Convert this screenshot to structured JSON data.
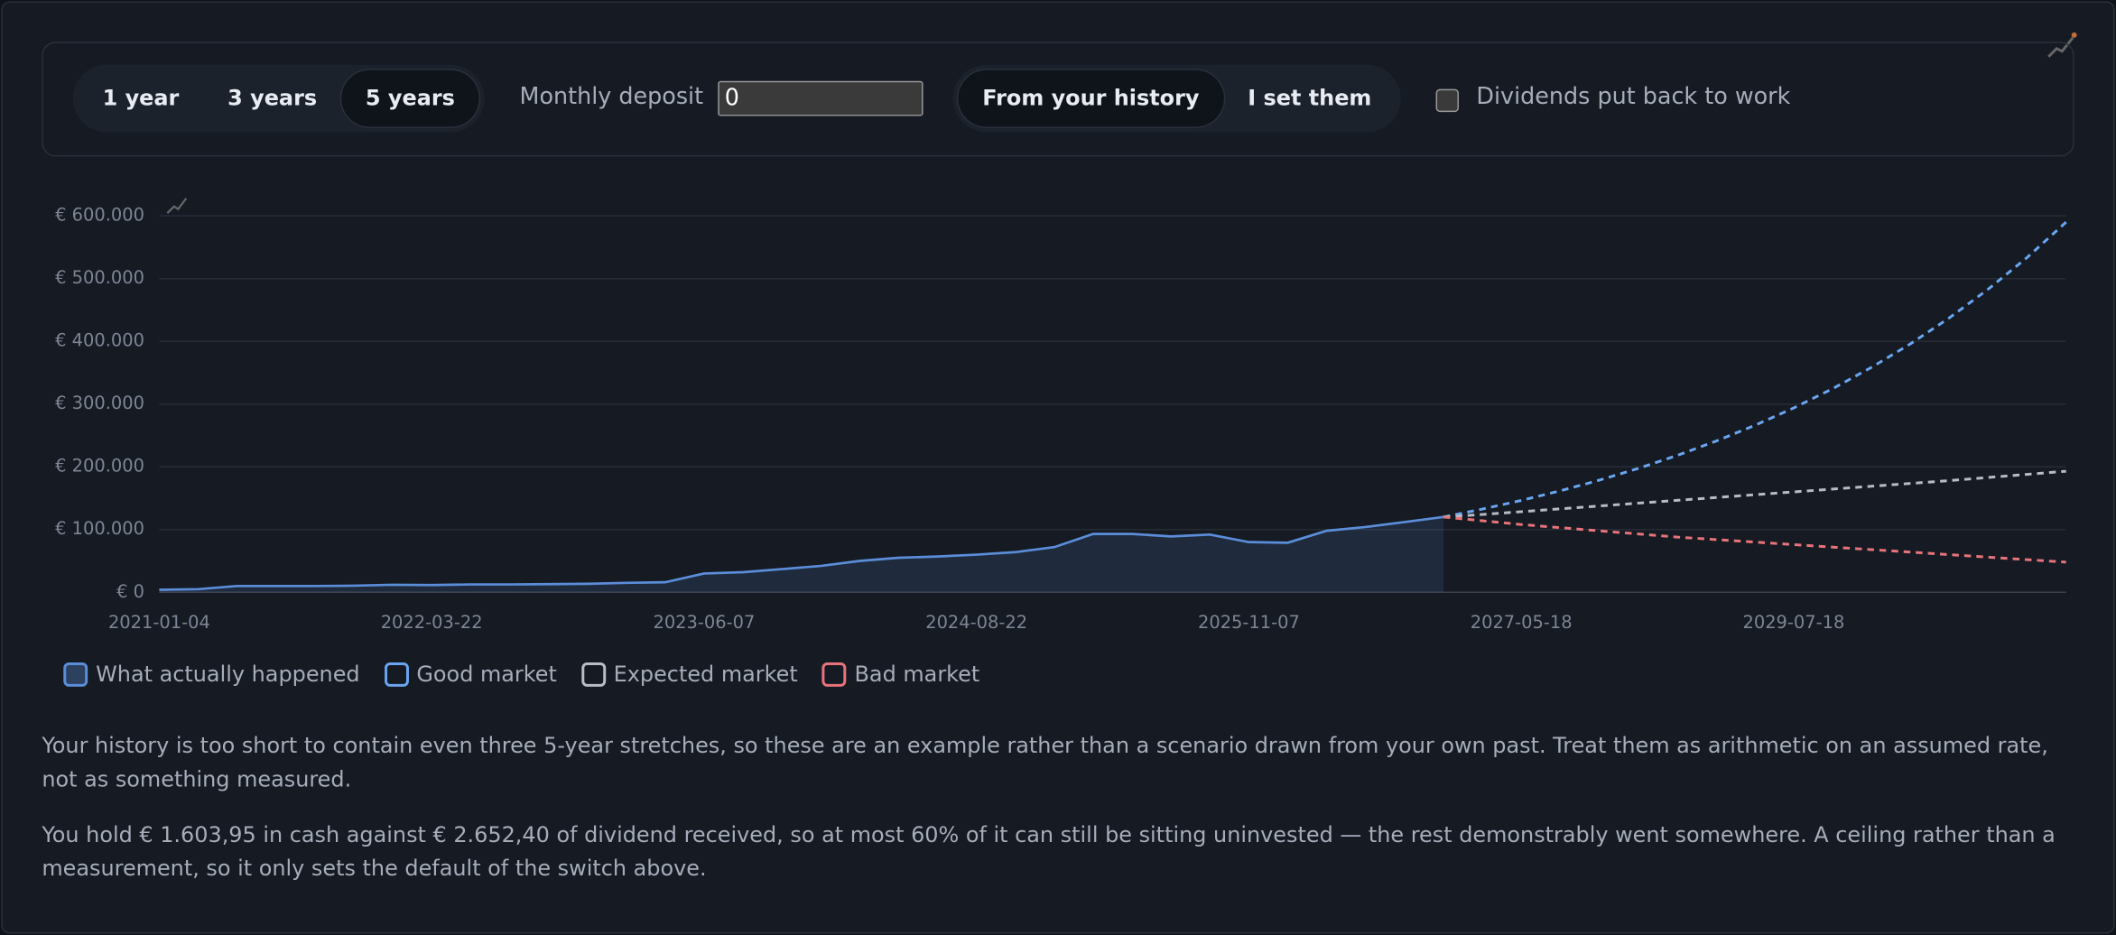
{
  "controls": {
    "horizons": [
      "1 year",
      "3 years",
      "5 years"
    ],
    "active_horizon": 2,
    "deposit_label": "Monthly deposit",
    "deposit_value": "0",
    "sources": [
      "From your history",
      "I set them"
    ],
    "active_source": 0,
    "dividends_label": "Dividends put back to work"
  },
  "chart_data": {
    "type": "line",
    "categories": [
      "2021-01-04",
      null,
      null,
      null,
      null,
      null,
      null,
      "2022-03-22",
      null,
      null,
      null,
      null,
      null,
      null,
      "2023-06-07",
      null,
      null,
      null,
      null,
      null,
      null,
      "2024-08-22",
      null,
      null,
      null,
      null,
      null,
      null,
      "2025-11-07",
      null,
      null,
      null,
      null,
      null,
      null,
      "2027-05-18",
      null,
      null,
      null,
      null,
      null,
      null,
      "2029-07-18",
      null,
      null,
      null,
      null,
      null,
      null,
      null
    ],
    "ylim": [
      0,
      600000
    ],
    "yticks": [
      {
        "value": 0,
        "label": "€ 0"
      },
      {
        "value": 100000,
        "label": "€ 100.000"
      },
      {
        "value": 200000,
        "label": "€ 200.000"
      },
      {
        "value": 300000,
        "label": "€ 300.000"
      },
      {
        "value": 400000,
        "label": "€ 400.000"
      },
      {
        "value": 500000,
        "label": "€ 500.000"
      },
      {
        "value": 600000,
        "label": "€ 600.000"
      }
    ],
    "grid": true,
    "series": [
      {
        "name": "What actually happened",
        "color": "#5b8dd9",
        "area": true,
        "values": [
          4000,
          5000,
          10000,
          10000,
          10000,
          10500,
          12000,
          11500,
          12500,
          12500,
          13000,
          13500,
          15000,
          16000,
          30000,
          32000,
          37000,
          42000,
          50000,
          55000,
          57000,
          60000,
          64000,
          72000,
          93000,
          93000,
          89000,
          92000,
          80000,
          79000,
          98000,
          104000,
          112000,
          120000,
          null,
          null,
          null,
          null,
          null,
          null,
          null,
          null,
          null,
          null,
          null,
          null,
          null,
          null,
          null,
          null
        ]
      },
      {
        "name": "Good market",
        "color": "#6aa5f0",
        "dashed": true,
        "values": [
          null,
          null,
          null,
          null,
          null,
          null,
          null,
          null,
          null,
          null,
          null,
          null,
          null,
          null,
          null,
          null,
          null,
          null,
          null,
          null,
          null,
          null,
          null,
          null,
          null,
          null,
          null,
          null,
          null,
          null,
          null,
          null,
          null,
          120000,
          132600,
          146400,
          161700,
          178600,
          197300,
          218000,
          240800,
          266000,
          293800,
          324500,
          358500,
          396000,
          437400,
          483200,
          533700,
          590000
        ]
      },
      {
        "name": "Expected market",
        "color": "#b8bcc6",
        "dashed": true,
        "values": [
          null,
          null,
          null,
          null,
          null,
          null,
          null,
          null,
          null,
          null,
          null,
          null,
          null,
          null,
          null,
          null,
          null,
          null,
          null,
          null,
          null,
          null,
          null,
          null,
          null,
          null,
          null,
          null,
          null,
          null,
          null,
          null,
          null,
          120000,
          124000,
          128500,
          133000,
          137500,
          142000,
          146500,
          151000,
          155500,
          160000,
          164500,
          169000,
          173500,
          178000,
          183000,
          188000,
          193000
        ]
      },
      {
        "name": "Bad market",
        "color": "#e8737a",
        "dashed": true,
        "values": [
          null,
          null,
          null,
          null,
          null,
          null,
          null,
          null,
          null,
          null,
          null,
          null,
          null,
          null,
          null,
          null,
          null,
          null,
          null,
          null,
          null,
          null,
          null,
          null,
          null,
          null,
          null,
          null,
          null,
          null,
          null,
          null,
          null,
          120000,
          114000,
          108000,
          103000,
          98000,
          93000,
          88000,
          84000,
          80000,
          76000,
          72000,
          68000,
          64000,
          60000,
          56000,
          52000,
          48000
        ]
      }
    ]
  },
  "notes": [
    "Your history is too short to contain even three 5-year stretches, so these are an example rather than a scenario drawn from your own past. Treat them as arithmetic on an assumed rate, not as something measured.",
    "You hold € 1.603,95 in cash against € 2.652,40 of dividend received, so at most 60% of it can still be sitting uninvested — the rest demonstrably went somewhere. A ceiling rather than a measurement, so it only sets the default of the switch above."
  ]
}
